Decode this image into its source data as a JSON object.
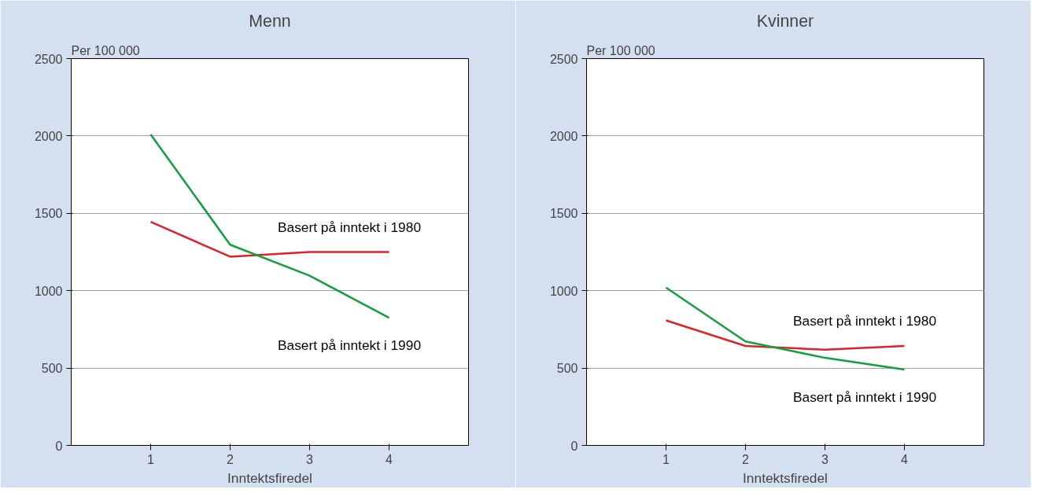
{
  "chart_data": [
    {
      "type": "line",
      "title": "Menn",
      "ylabel": "Per 100 000",
      "xlabel": "Inntektsfiredel",
      "x": [
        1,
        2,
        3,
        4
      ],
      "series": [
        {
          "name": "Basert på inntekt i 1980",
          "color": "#e0202a",
          "values": [
            1445,
            1220,
            1250,
            1250
          ]
        },
        {
          "name": "Basert på inntekt i 1990",
          "color": "#10a040",
          "values": [
            2010,
            1297,
            1097,
            825
          ]
        }
      ],
      "xlim": [
        0,
        5
      ],
      "xticks": [
        1,
        2,
        3,
        4
      ],
      "ylim": [
        0,
        2500
      ],
      "yticks": [
        0,
        500,
        1000,
        1500,
        2000,
        2500
      ],
      "grid": "y",
      "legend": false
    },
    {
      "type": "line",
      "title": "Kvinner",
      "ylabel": "Per 100 000",
      "xlabel": "Inntektsfiredel",
      "x": [
        1,
        2,
        3,
        4
      ],
      "series": [
        {
          "name": "Basert på inntekt i 1980",
          "color": "#e0202a",
          "values": [
            808,
            643,
            619,
            643
          ]
        },
        {
          "name": "Basert på inntekt i 1990",
          "color": "#10a040",
          "values": [
            1020,
            672,
            566,
            490
          ]
        }
      ],
      "xlim": [
        0,
        5
      ],
      "xticks": [
        1,
        2,
        3,
        4
      ],
      "ylim": [
        0,
        2500
      ],
      "yticks": [
        0,
        500,
        1000,
        1500,
        2000,
        2500
      ],
      "grid": "y",
      "legend": false
    }
  ]
}
